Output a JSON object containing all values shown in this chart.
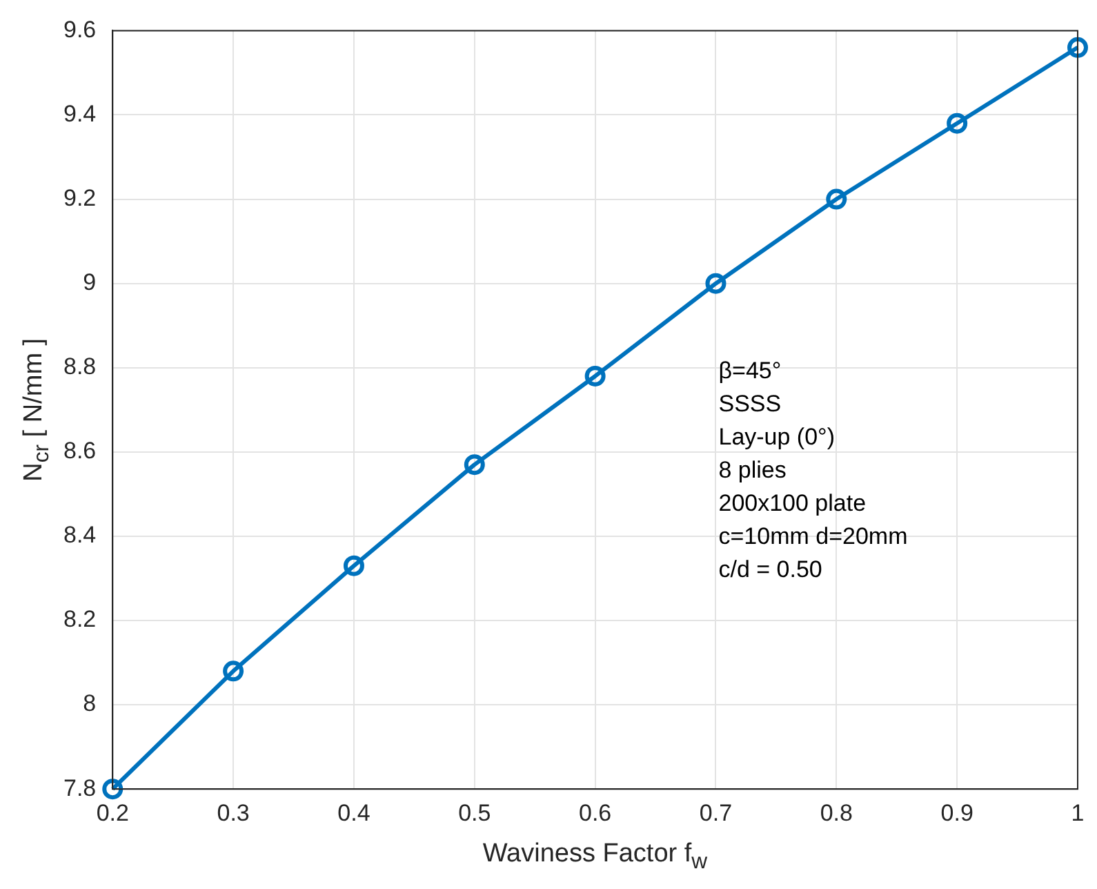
{
  "chart_data": {
    "type": "line",
    "xlabel": "Waviness Factor f$_{w}$",
    "ylabel": "N$_{cr}$ [ N/mm ]",
    "x": [
      0.2,
      0.3,
      0.4,
      0.5,
      0.6,
      0.7,
      0.8,
      0.9,
      1.0
    ],
    "series": [
      {
        "color": "#0072bd",
        "values": [
          7.8,
          8.08,
          8.33,
          8.57,
          8.78,
          9.0,
          9.2,
          9.38,
          9.56
        ]
      }
    ],
    "xlim": [
      0.2,
      1.0
    ],
    "xticks": [
      0.2,
      0.3,
      0.4,
      0.5,
      0.6,
      0.7,
      0.8,
      0.9,
      1
    ],
    "ylim": [
      7.8,
      9.6
    ],
    "yticks": [
      7.8,
      8,
      8.2,
      8.4,
      8.6,
      8.8,
      9,
      9.2,
      9.4,
      9.6
    ],
    "annotations": [
      "β=45°",
      "SSSS",
      "Lay-up (0°)",
      "8 plies",
      "200x100 plate",
      "c=10mm d=20mm",
      "c/d = 0.50"
    ],
    "grid": true,
    "legend": false,
    "marker": "circle",
    "line_style": "solid"
  }
}
